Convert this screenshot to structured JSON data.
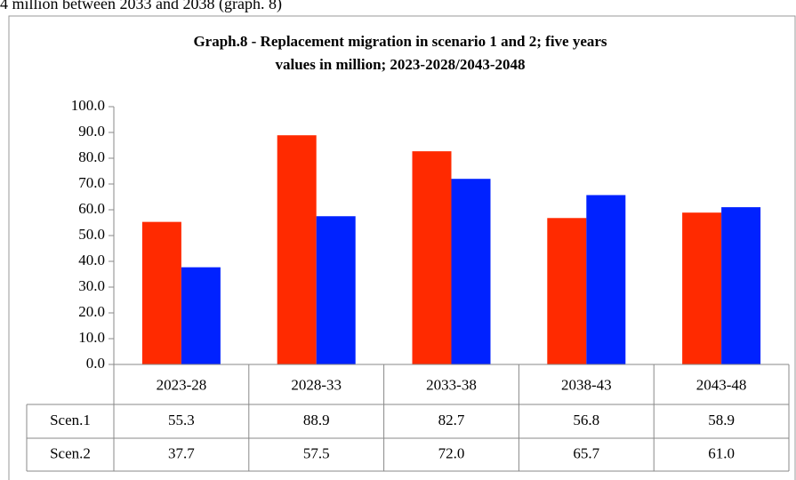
{
  "header_text": "4 million between 2033 and 2038 (graph. 8)",
  "chart_data": {
    "type": "bar",
    "title": [
      "Graph.8 - Replacement migration in scenario 1 and 2; five years",
      "values in million; 2023-2028/2043-2048"
    ],
    "categories": [
      "2023-28",
      "2028-33",
      "2033-38",
      "2038-43",
      "2043-48"
    ],
    "series": [
      {
        "name": "Scen.1",
        "color": "#ff2a00",
        "values": [
          55.3,
          88.9,
          82.7,
          56.8,
          58.9
        ],
        "value_labels": [
          "55.3",
          "88.9",
          "82.7",
          "56.8",
          "58.9"
        ]
      },
      {
        "name": "Scen.2",
        "color": "#0022ff",
        "values": [
          37.7,
          57.5,
          72.0,
          65.7,
          61.0
        ],
        "value_labels": [
          "37.7",
          "57.5",
          "72.0",
          "65.7",
          "61.0"
        ]
      }
    ],
    "ylim": [
      0,
      100
    ],
    "yticks": [
      {
        "value": 0,
        "label": "0.0"
      },
      {
        "value": 10,
        "label": "10.0"
      },
      {
        "value": 20,
        "label": "20.0"
      },
      {
        "value": 30,
        "label": "30.0"
      },
      {
        "value": 40,
        "label": "40.0"
      },
      {
        "value": 50,
        "label": "50.0"
      },
      {
        "value": 60,
        "label": "60.0"
      },
      {
        "value": 70,
        "label": "70.0"
      },
      {
        "value": 80,
        "label": "80.0"
      },
      {
        "value": 90,
        "label": "90.0"
      },
      {
        "value": 100,
        "label": "100.0"
      }
    ],
    "grid": false
  }
}
